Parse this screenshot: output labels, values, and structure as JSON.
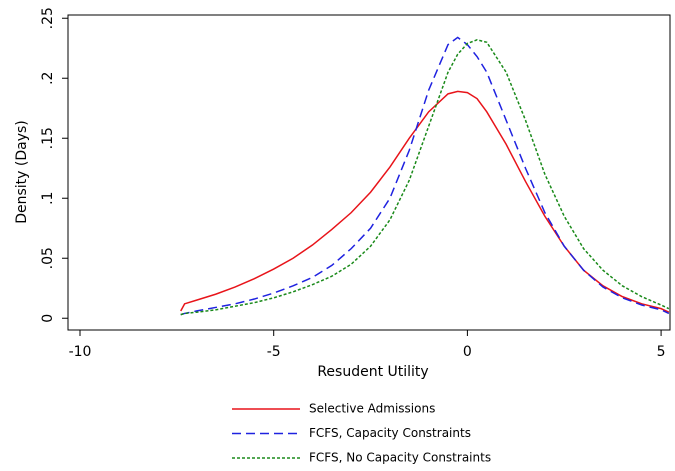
{
  "chart_data": {
    "type": "line",
    "x_label": "Resudent Utility",
    "y_label": "Density (Days)",
    "x": [
      -7.4,
      -7.3,
      -7,
      -6.5,
      -6,
      -5.5,
      -5,
      -4.5,
      -4,
      -3.5,
      -3,
      -2.5,
      -2,
      -1.5,
      -1,
      -0.5,
      -0.25,
      0,
      0.25,
      0.5,
      1,
      1.5,
      2,
      2.5,
      3,
      3.5,
      4,
      4.5,
      5,
      5.2
    ],
    "series": [
      {
        "name": "Selective Admissions",
        "color": "#e8141a",
        "dash": "solid",
        "values": [
          0.006,
          0.012,
          0.015,
          0.02,
          0.026,
          0.033,
          0.041,
          0.05,
          0.061,
          0.074,
          0.088,
          0.105,
          0.126,
          0.15,
          0.172,
          0.187,
          0.189,
          0.188,
          0.183,
          0.172,
          0.145,
          0.114,
          0.085,
          0.06,
          0.04,
          0.027,
          0.018,
          0.012,
          0.008,
          0.005
        ]
      },
      {
        "name": "FCFS, Capacity Constraints",
        "color": "#1f22e0",
        "dash": "dashed",
        "values": [
          0.003,
          0.004,
          0.006,
          0.009,
          0.012,
          0.016,
          0.021,
          0.027,
          0.034,
          0.044,
          0.058,
          0.075,
          0.1,
          0.14,
          0.19,
          0.228,
          0.234,
          0.228,
          0.218,
          0.205,
          0.165,
          0.125,
          0.088,
          0.06,
          0.04,
          0.026,
          0.017,
          0.011,
          0.007,
          0.004
        ]
      },
      {
        "name": "FCFS, No Capacity Constraints",
        "color": "#1a8a1a",
        "dash": "dotted",
        "values": [
          0.003,
          0.004,
          0.005,
          0.007,
          0.01,
          0.013,
          0.017,
          0.022,
          0.028,
          0.035,
          0.045,
          0.06,
          0.082,
          0.115,
          0.16,
          0.205,
          0.22,
          0.229,
          0.232,
          0.23,
          0.205,
          0.165,
          0.12,
          0.085,
          0.058,
          0.04,
          0.027,
          0.018,
          0.011,
          0.008
        ]
      }
    ],
    "xlim": [
      -10.31,
      5.23
    ],
    "ylim": [
      -0.0098,
      0.2527
    ],
    "xticks": [
      -10,
      -5,
      0,
      5
    ],
    "yticks": [
      0,
      {
        "value": 0.05,
        "label": ".05"
      },
      {
        "value": 0.1,
        "label": ".1"
      },
      {
        "value": 0.15,
        "label": ".15"
      },
      {
        "value": 0.2,
        "label": ".2"
      },
      {
        "value": 0.25,
        "label": ".25"
      }
    ],
    "grid": false,
    "legend": "bottom"
  }
}
